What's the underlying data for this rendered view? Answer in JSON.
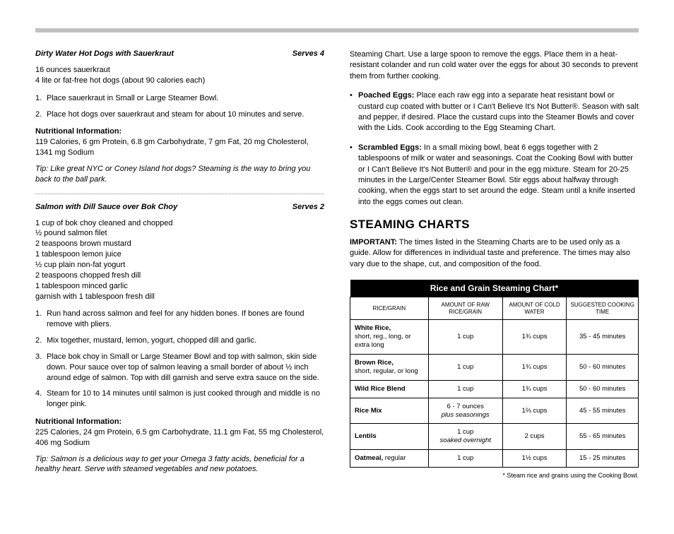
{
  "recipe1": {
    "title": "Dirty Water Hot Dogs with Sauerkraut",
    "serves": "Serves 4",
    "ingredients": [
      "16 ounces sauerkraut",
      "4 lite or fat-free hot dogs (about 90 calories each)"
    ],
    "steps": [
      "Place sauerkraut in Small or Large Steamer Bowl.",
      "Place hot dogs over sauerkraut and steam for about 10 minutes and serve."
    ],
    "nut_label": "Nutritional Information:",
    "nut": "119 Calories, 6 gm Protein, 6.8 gm Carbohydrate, 7 gm Fat, 20 mg Cholesterol, 1341 mg Sodium",
    "tip": "Tip:  Like great NYC or Coney Island hot dogs? Steaming is the way to bring you back to the ball park."
  },
  "recipe2": {
    "title": "Salmon with Dill Sauce over Bok Choy",
    "serves": "Serves 2",
    "ingredients": [
      "1 cup of bok choy cleaned and chopped",
      "½ pound salmon filet",
      "2 teaspoons brown mustard",
      "1 tablespoon lemon juice",
      "½ cup plain non-fat yogurt",
      "2 teaspoons chopped fresh dill",
      "1 tablespoon minced garlic",
      "garnish with 1 tablespoon fresh dill"
    ],
    "steps": [
      "Run hand across salmon and feel for any hidden bones. If bones are found remove with pliers.",
      "Mix together, mustard, lemon, yogurt, chopped dill and garlic.",
      "Place bok choy in Small or Large Steamer Bowl and top with salmon, skin side down.  Pour sauce over top of salmon leaving a small border of about ½ inch around edge of salmon.  Top with dill garnish and serve extra sauce on the side.",
      "Steam for 10 to 14 minutes until salmon is just cooked through and middle is no longer pink."
    ],
    "nut_label": "Nutritional Information:",
    "nut": "225 Calories, 24 gm Protein, 6.5 gm Carbohydrate, 11.1 gm Fat, 55 mg Cholesterol, 406 mg Sodium",
    "tip": "Tip: Salmon is a delicious way to get your Omega 3 fatty acids, beneficial for a healthy heart.  Serve with steamed vegetables and new potatoes."
  },
  "right": {
    "intro": "Steaming Chart. Use a large spoon to remove the eggs. Place them in a heat-resistant colander and run cold water over the eggs for about 30 seconds to prevent them from further cooking.",
    "poached_lead": "Poached Eggs:",
    "poached": "  Place each raw egg into a separate heat resistant bowl or custard cup coated with butter or I Can't Believe It's Not Butter®. Season with salt and pepper, if desired. Place the custard cups into the Steamer Bowls and cover with the Lids. Cook according to the Egg Steaming Chart.",
    "scrambled_lead": "Scrambled Eggs:",
    "scrambled": "  In a small mixing bowl, beat 6 eggs together with 2 tablespoons of milk or water and seasonings. Coat the Cooking Bowl with butter or I Can't Believe It's Not Butter® and pour in the egg mixture. Steam for 20-25 minutes in the Large/Center Steamer Bowl. Stir eggs about halfway through cooking, when the eggs start to set around the edge. Steam until a knife inserted into the eggs comes out clean.",
    "section_title": "STEAMING CHARTS",
    "important_label": "IMPORTANT:",
    "important": "  The times listed in the Steaming Charts are to be used only as a guide. Allow for differences in individual taste and preference. The times may also vary due to the shape, cut, and composition of the food.",
    "table": {
      "title": "Rice and Grain Steaming Chart*",
      "headers": [
        "RICE/GRAIN",
        "AMOUNT OF RAW RICE/GRAIN",
        "AMOUNT OF COLD WATER",
        "SUGGESTED COOKING TIME"
      ],
      "rows": [
        {
          "label_bold": "White Rice,",
          "label_rest": "short, reg., long, or extra long",
          "c1": "1 cup",
          "c2": "1¾ cups",
          "c3": "35 - 45 minutes"
        },
        {
          "label_bold": "Brown Rice,",
          "label_rest": "short, regular, or long",
          "c1": "1 cup",
          "c2": "1¾ cups",
          "c3": "50 - 60 minutes"
        },
        {
          "label_bold": "Wild Rice Blend",
          "label_rest": "",
          "c1": "1 cup",
          "c2": "1¾ cups",
          "c3": "50 - 60 minutes"
        },
        {
          "label_bold": "Rice Mix",
          "label_rest": "",
          "c1": "6 - 7 ounces\nplus seasonings",
          "c2": "1⅔ cups",
          "c3": "45 - 55 minutes"
        },
        {
          "label_bold": "Lentils",
          "label_rest": "",
          "c1": "1 cup\nsoaked overnight",
          "c2": "2 cups",
          "c3": "55 - 65 minutes"
        },
        {
          "label_bold": "Oatmeal,",
          "label_rest": " regular",
          "c1": "1 cup",
          "c2": "1½ cups",
          "c3": "15 - 25 minutes",
          "inline": true
        }
      ],
      "footnote": "* Steam rice and grains using the Cooking Bowl."
    }
  }
}
